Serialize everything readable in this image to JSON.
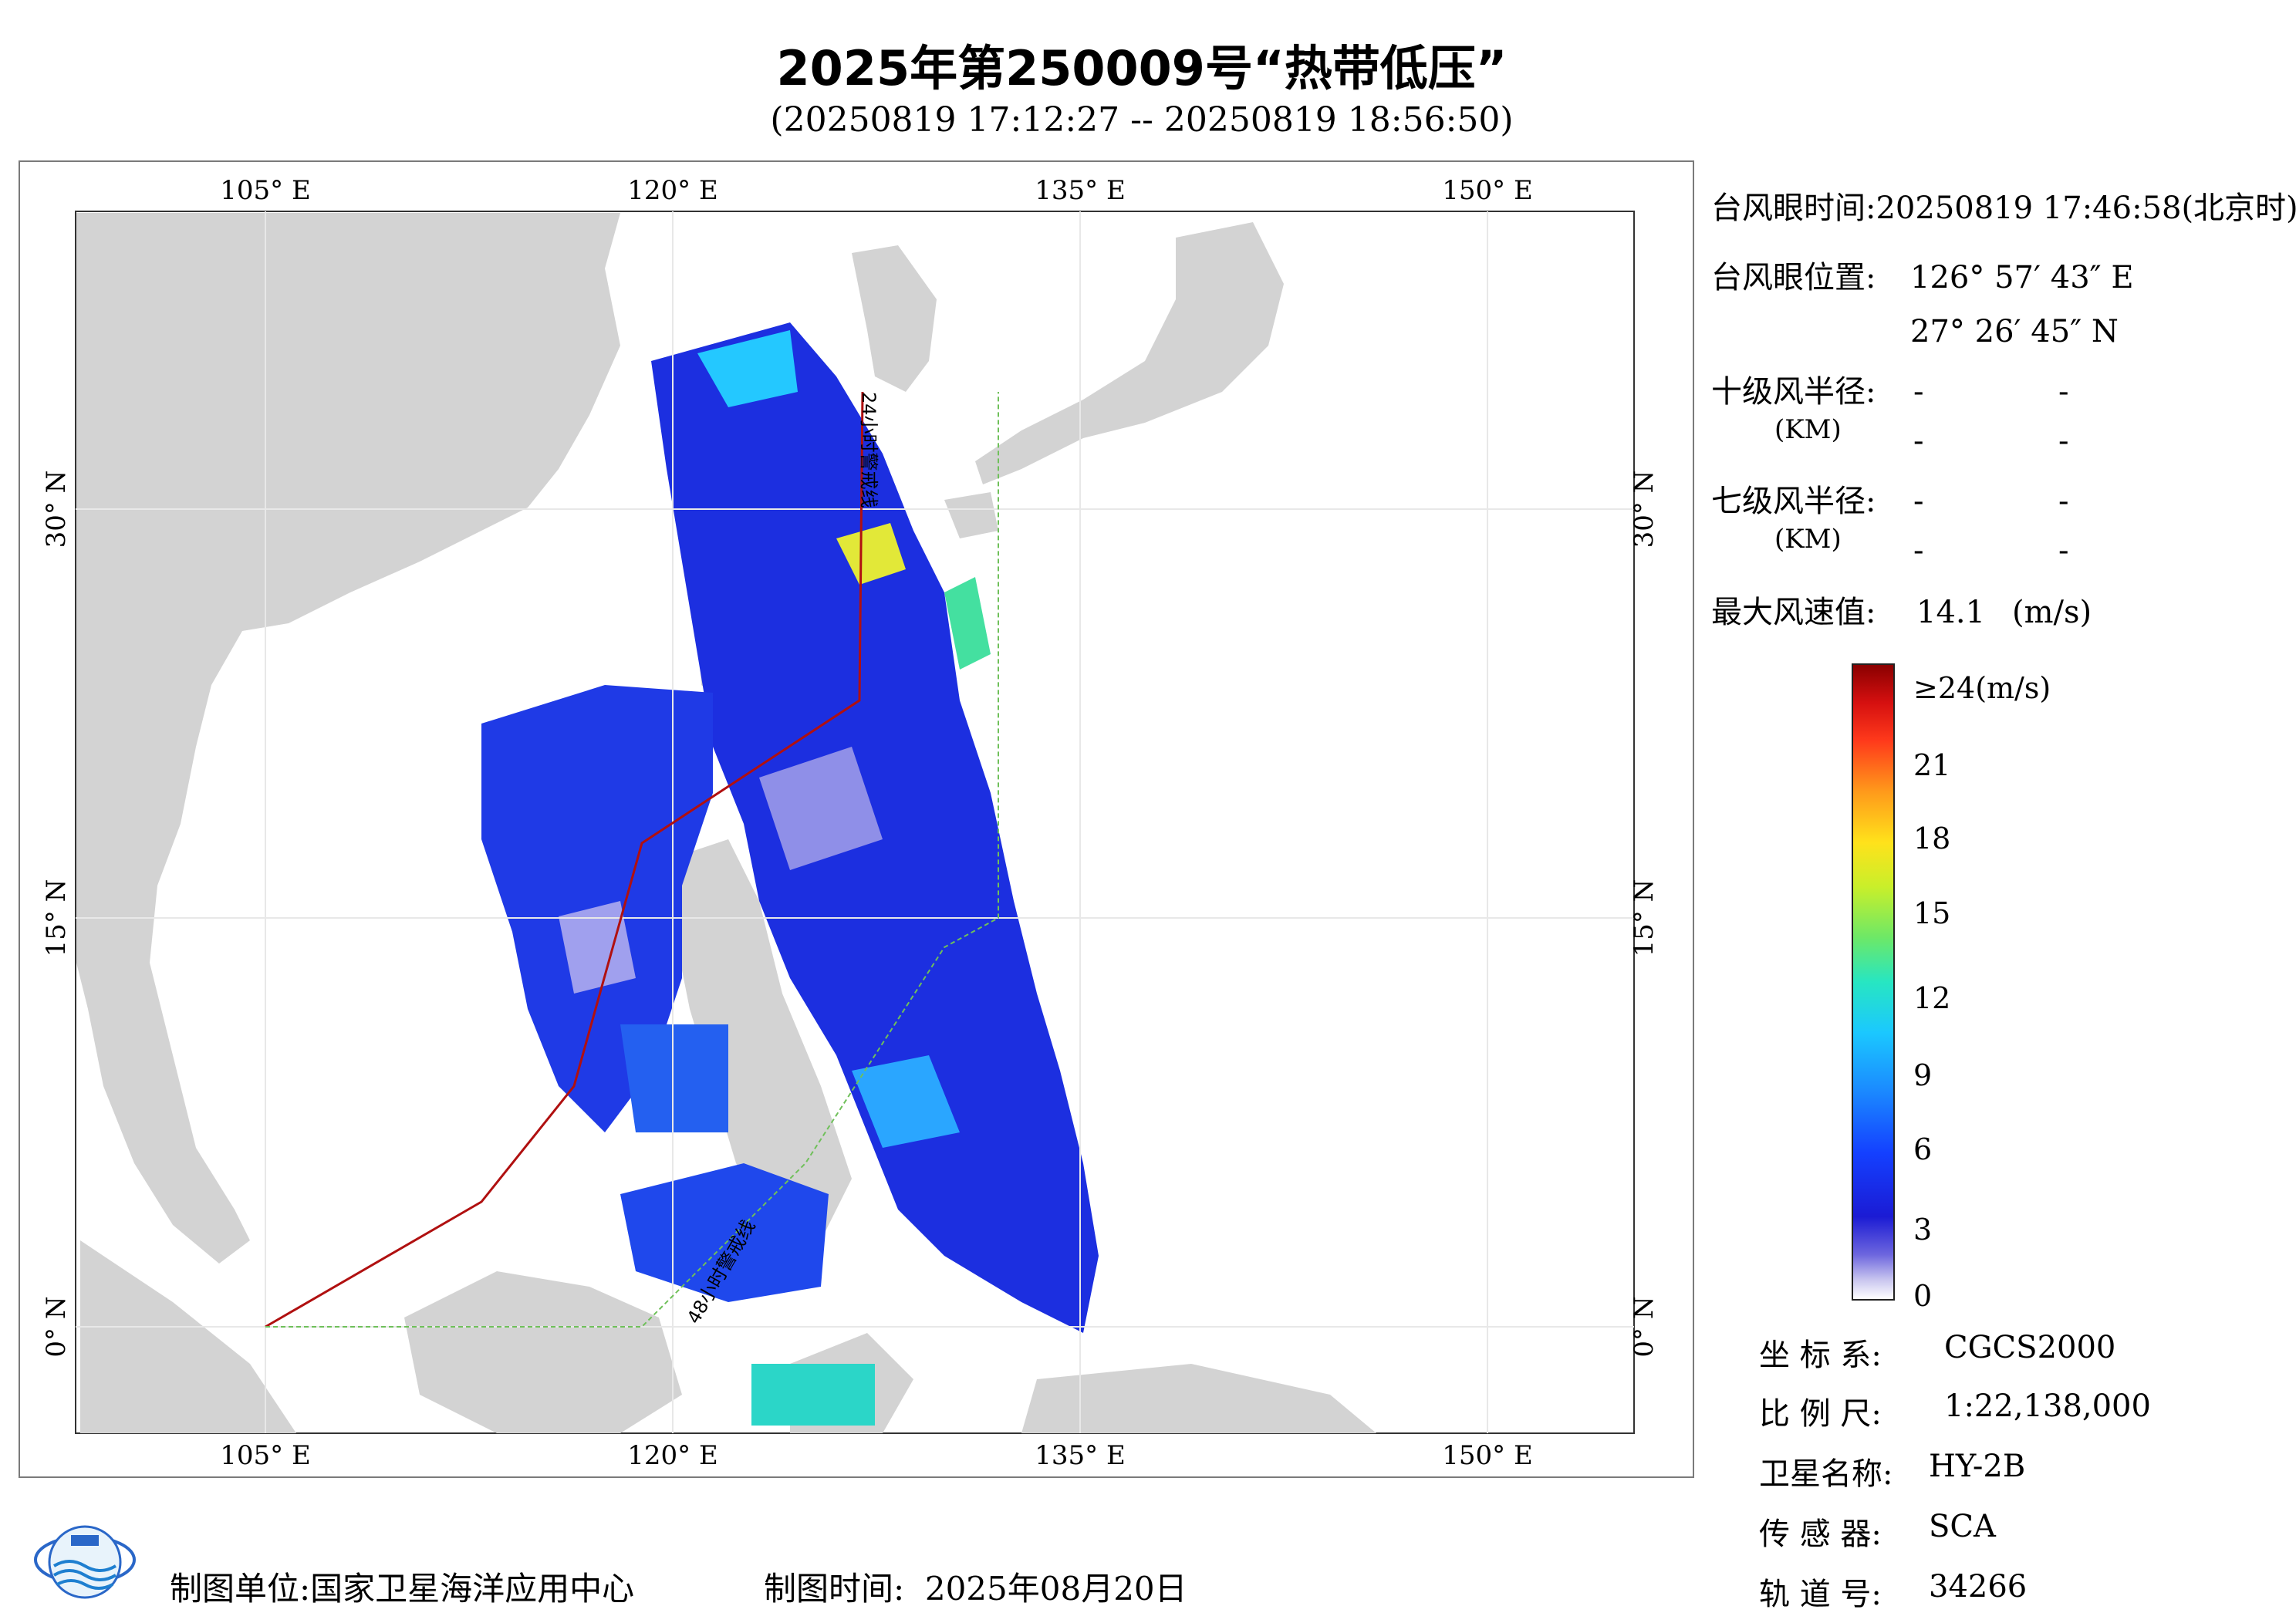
{
  "title": "2025年第250009号“热带低压”",
  "subtitle": "(20250819 17:12:27 -- 20250819 18:56:50)",
  "map": {
    "lon_ticks": [
      "105° E",
      "120° E",
      "135° E",
      "150° E"
    ],
    "lat_ticks": [
      "30° N",
      "15° N",
      "0° N"
    ],
    "line_24h": "24小时警戒线",
    "line_48h": "48小时警戒线",
    "land_color": "#d3d3d3",
    "sea_color": "#ffffff"
  },
  "info": {
    "eye_time_label": "台风眼时间:",
    "eye_time_value": "20250819 17:46:58(北京时)",
    "eye_pos_label": "台风眼位置:",
    "eye_lon": "126° 57′ 43″ E",
    "eye_lat": "27° 26′ 45″ N",
    "r10_label": "十级风半径:",
    "r7_label": "七级风半径:",
    "km_label": "(KM)",
    "dash": "-",
    "max_wind_label": "最大风速值:",
    "max_wind_value": "14.1",
    "max_wind_unit": "(m/s)"
  },
  "colorbar": {
    "top_label": "≥24(m/s)",
    "ticks": [
      "21",
      "18",
      "15",
      "12",
      "9",
      "6",
      "3",
      "0"
    ]
  },
  "meta": {
    "crs_label": "坐 标 系:",
    "crs_value": "CGCS2000",
    "scale_label": "比 例 尺:",
    "scale_value": "1:22,138,000",
    "sat_label": "卫星名称:",
    "sat_value": "HY-2B",
    "sensor_label": "传 感 器:",
    "sensor_value": "SCA",
    "orbit_label": "轨 道 号:",
    "orbit_value": "34266"
  },
  "footer": {
    "unit_label": "制图单位:",
    "unit_value": "国家卫星海洋应用中心",
    "time_label": "制图时间:",
    "time_value": "2025年08月20日"
  }
}
